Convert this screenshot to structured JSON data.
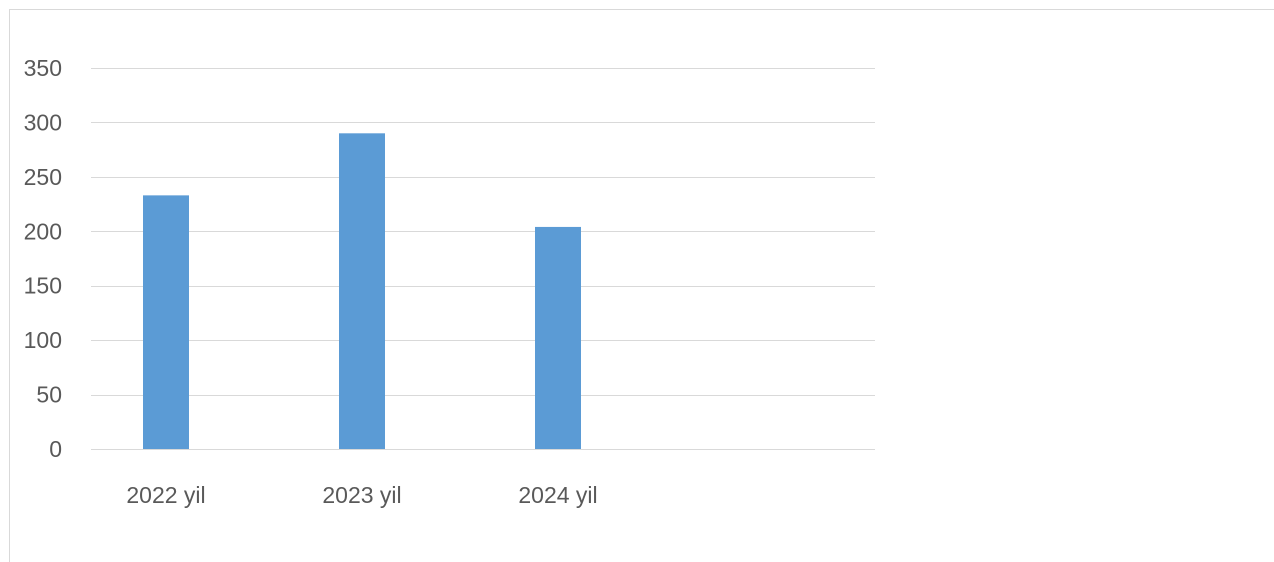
{
  "chart_data": {
    "type": "bar",
    "categories": [
      "2022 yil",
      "2023 yil",
      "2024 yil"
    ],
    "values": [
      233,
      290,
      204
    ],
    "title": "",
    "xlabel": "",
    "ylabel": "",
    "ylim": [
      0,
      350
    ],
    "yticks": [
      0,
      50,
      100,
      150,
      200,
      250,
      300,
      350
    ],
    "grid": true,
    "legend": "none",
    "colors": {
      "bar": "#5b9bd5",
      "grid": "#d9d9d9",
      "text": "#595959"
    }
  }
}
